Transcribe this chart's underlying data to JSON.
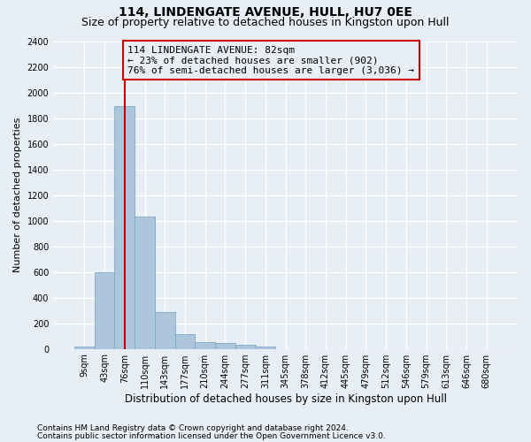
{
  "title1": "114, LINDENGATE AVENUE, HULL, HU7 0EE",
  "title2": "Size of property relative to detached houses in Kingston upon Hull",
  "xlabel": "Distribution of detached houses by size in Kingston upon Hull",
  "ylabel": "Number of detached properties",
  "footnote1": "Contains HM Land Registry data © Crown copyright and database right 2024.",
  "footnote2": "Contains public sector information licensed under the Open Government Licence v3.0.",
  "bin_labels": [
    "9sqm",
    "43sqm",
    "76sqm",
    "110sqm",
    "143sqm",
    "177sqm",
    "210sqm",
    "244sqm",
    "277sqm",
    "311sqm",
    "345sqm",
    "378sqm",
    "412sqm",
    "445sqm",
    "479sqm",
    "512sqm",
    "546sqm",
    "579sqm",
    "613sqm",
    "646sqm",
    "680sqm"
  ],
  "bar_heights": [
    20,
    600,
    1890,
    1030,
    290,
    115,
    50,
    45,
    30,
    20,
    0,
    0,
    0,
    0,
    0,
    0,
    0,
    0,
    0,
    0,
    0
  ],
  "bar_color": "#aec6dc",
  "bar_edge_color": "#7aaac8",
  "vline_x": 2.0,
  "annotation_title": "114 LINDENGATE AVENUE: 82sqm",
  "annotation_line1": "← 23% of detached houses are smaller (902)",
  "annotation_line2": "76% of semi-detached houses are larger (3,036) →",
  "vline_color": "#cc0000",
  "annotation_box_color": "#cc0000",
  "ylim": [
    0,
    2400
  ],
  "yticks": [
    0,
    200,
    400,
    600,
    800,
    1000,
    1200,
    1400,
    1600,
    1800,
    2000,
    2200,
    2400
  ],
  "background_color": "#e8eef5",
  "grid_color": "#ffffff",
  "title1_fontsize": 10,
  "title2_fontsize": 9,
  "xlabel_fontsize": 8.5,
  "ylabel_fontsize": 8,
  "tick_fontsize": 7,
  "annotation_fontsize": 8,
  "footnote_fontsize": 6.5
}
